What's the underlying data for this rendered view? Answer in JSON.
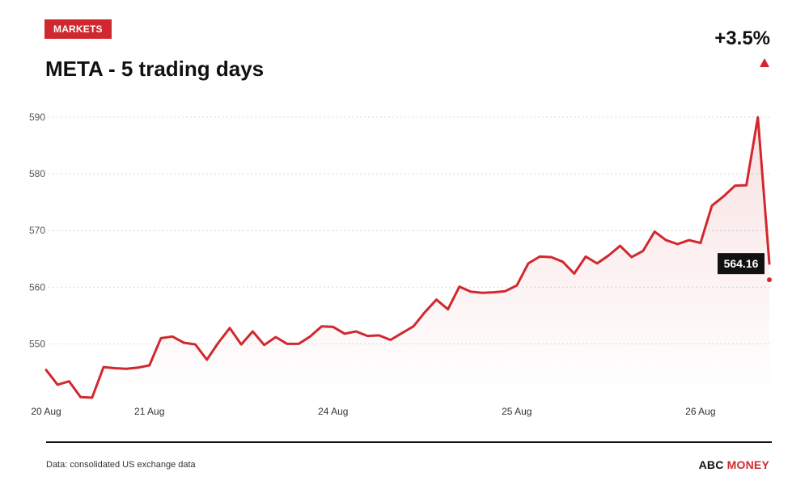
{
  "header": {
    "tag": "MARKETS",
    "title": "META - 5 trading days",
    "change": "+3.5%"
  },
  "colors": {
    "accent": "#d0282e",
    "line": "#d0282e",
    "text": "#111111"
  },
  "chart_data": {
    "type": "area",
    "ylim": [
      540.5,
      590
    ],
    "yticks": [
      550,
      560,
      570,
      580,
      590
    ],
    "x_tick_labels": [
      "20 Aug",
      "21 Aug",
      "24 Aug",
      "25 Aug",
      "26 Aug"
    ],
    "x_tick_index": [
      0,
      9,
      25,
      41,
      57
    ],
    "grid": true,
    "last_value_label": "564.16",
    "series": [
      {
        "values": [
          545.4,
          542.8,
          543.4,
          540.6,
          540.5,
          545.9,
          545.7,
          545.6,
          545.8,
          546.2,
          551.0,
          551.3,
          550.2,
          549.9,
          547.2,
          550.2,
          552.8,
          549.9,
          552.2,
          549.8,
          551.2,
          550.0,
          550.0,
          551.3,
          553.1,
          553.0,
          551.8,
          552.2,
          551.4,
          551.5,
          550.7,
          551.9,
          553.1,
          555.6,
          557.8,
          556.1,
          560.1,
          559.2,
          559.0,
          559.1,
          559.3,
          560.3,
          564.2,
          565.4,
          565.3,
          564.5,
          562.4,
          565.4,
          564.2,
          565.6,
          567.3,
          565.3,
          566.4,
          569.8,
          568.3,
          567.6,
          568.3,
          567.8,
          574.4,
          576.0,
          577.9,
          578.0,
          590.0,
          564.16
        ]
      }
    ]
  },
  "footer": {
    "source": "Data: consolidated US exchange data",
    "brand_part1": "ABC",
    "brand_part2": "MONEY"
  }
}
